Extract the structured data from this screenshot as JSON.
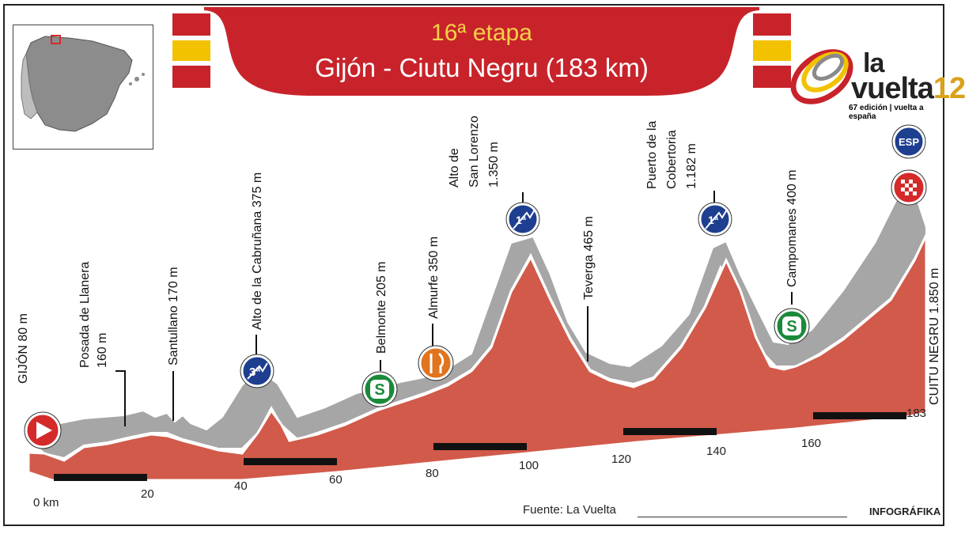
{
  "header": {
    "stage": "16ª etapa",
    "route": "Gijón - Ciutu Negru (183 km)"
  },
  "logo": {
    "line1": "la",
    "line2": "vuelta",
    "year": "12",
    "subtitle": "67 edición | vuelta a españa"
  },
  "map": {
    "label": ""
  },
  "distance_axis": {
    "labels": [
      "0 km",
      "20",
      "40",
      "60",
      "80",
      "100",
      "120",
      "140",
      "160",
      "183"
    ]
  },
  "points": [
    {
      "label": "GIJÓN 80 m",
      "icon": "start-flag-icon"
    },
    {
      "label": "Posada de Llanera",
      "label2": "160 m"
    },
    {
      "label": "Santullano 170 m"
    },
    {
      "label": "Alto de la Cabruñana 375 m",
      "icon": "third-category-climb-icon",
      "icon_text": "3ª"
    },
    {
      "label": "Belmonte 205 m",
      "icon": "sprint-icon",
      "icon_text": "S"
    },
    {
      "label": "Almurfe 350 m",
      "icon": "feed-zone-icon"
    },
    {
      "label": "Alto de",
      "label2": "San Lorenzo",
      "label3": "1.350 m",
      "icon": "first-category-climb-icon",
      "icon_text": "1ª"
    },
    {
      "label": "Teverga 465 m"
    },
    {
      "label": "Puerto de la",
      "label2": "Cobertoria",
      "label3": "1.182 m",
      "icon": "first-category-climb-icon",
      "icon_text": "1ª"
    },
    {
      "label": "Campomanes 400 m",
      "icon": "sprint-icon",
      "icon_text": "S"
    },
    {
      "label": "CUITU NEGRU 1.850 m",
      "icon": "special-category-climb-icon",
      "icon_text": "ESP"
    }
  ],
  "footer": {
    "source": "Fuente: La Vuelta",
    "credit": "INFOGRÁFIKA"
  },
  "colors": {
    "banner_red": "#c8232b",
    "banner_yellow": "#f2c200",
    "stage_title": "#f5d04a",
    "profile_fill": "#d15a4a",
    "profile_side": "#9a9a9a",
    "climb_blue": "#1e3f8f",
    "sprint_green": "#1a8a3a",
    "feed_orange": "#e0741f",
    "start_red": "#d42a2a"
  }
}
